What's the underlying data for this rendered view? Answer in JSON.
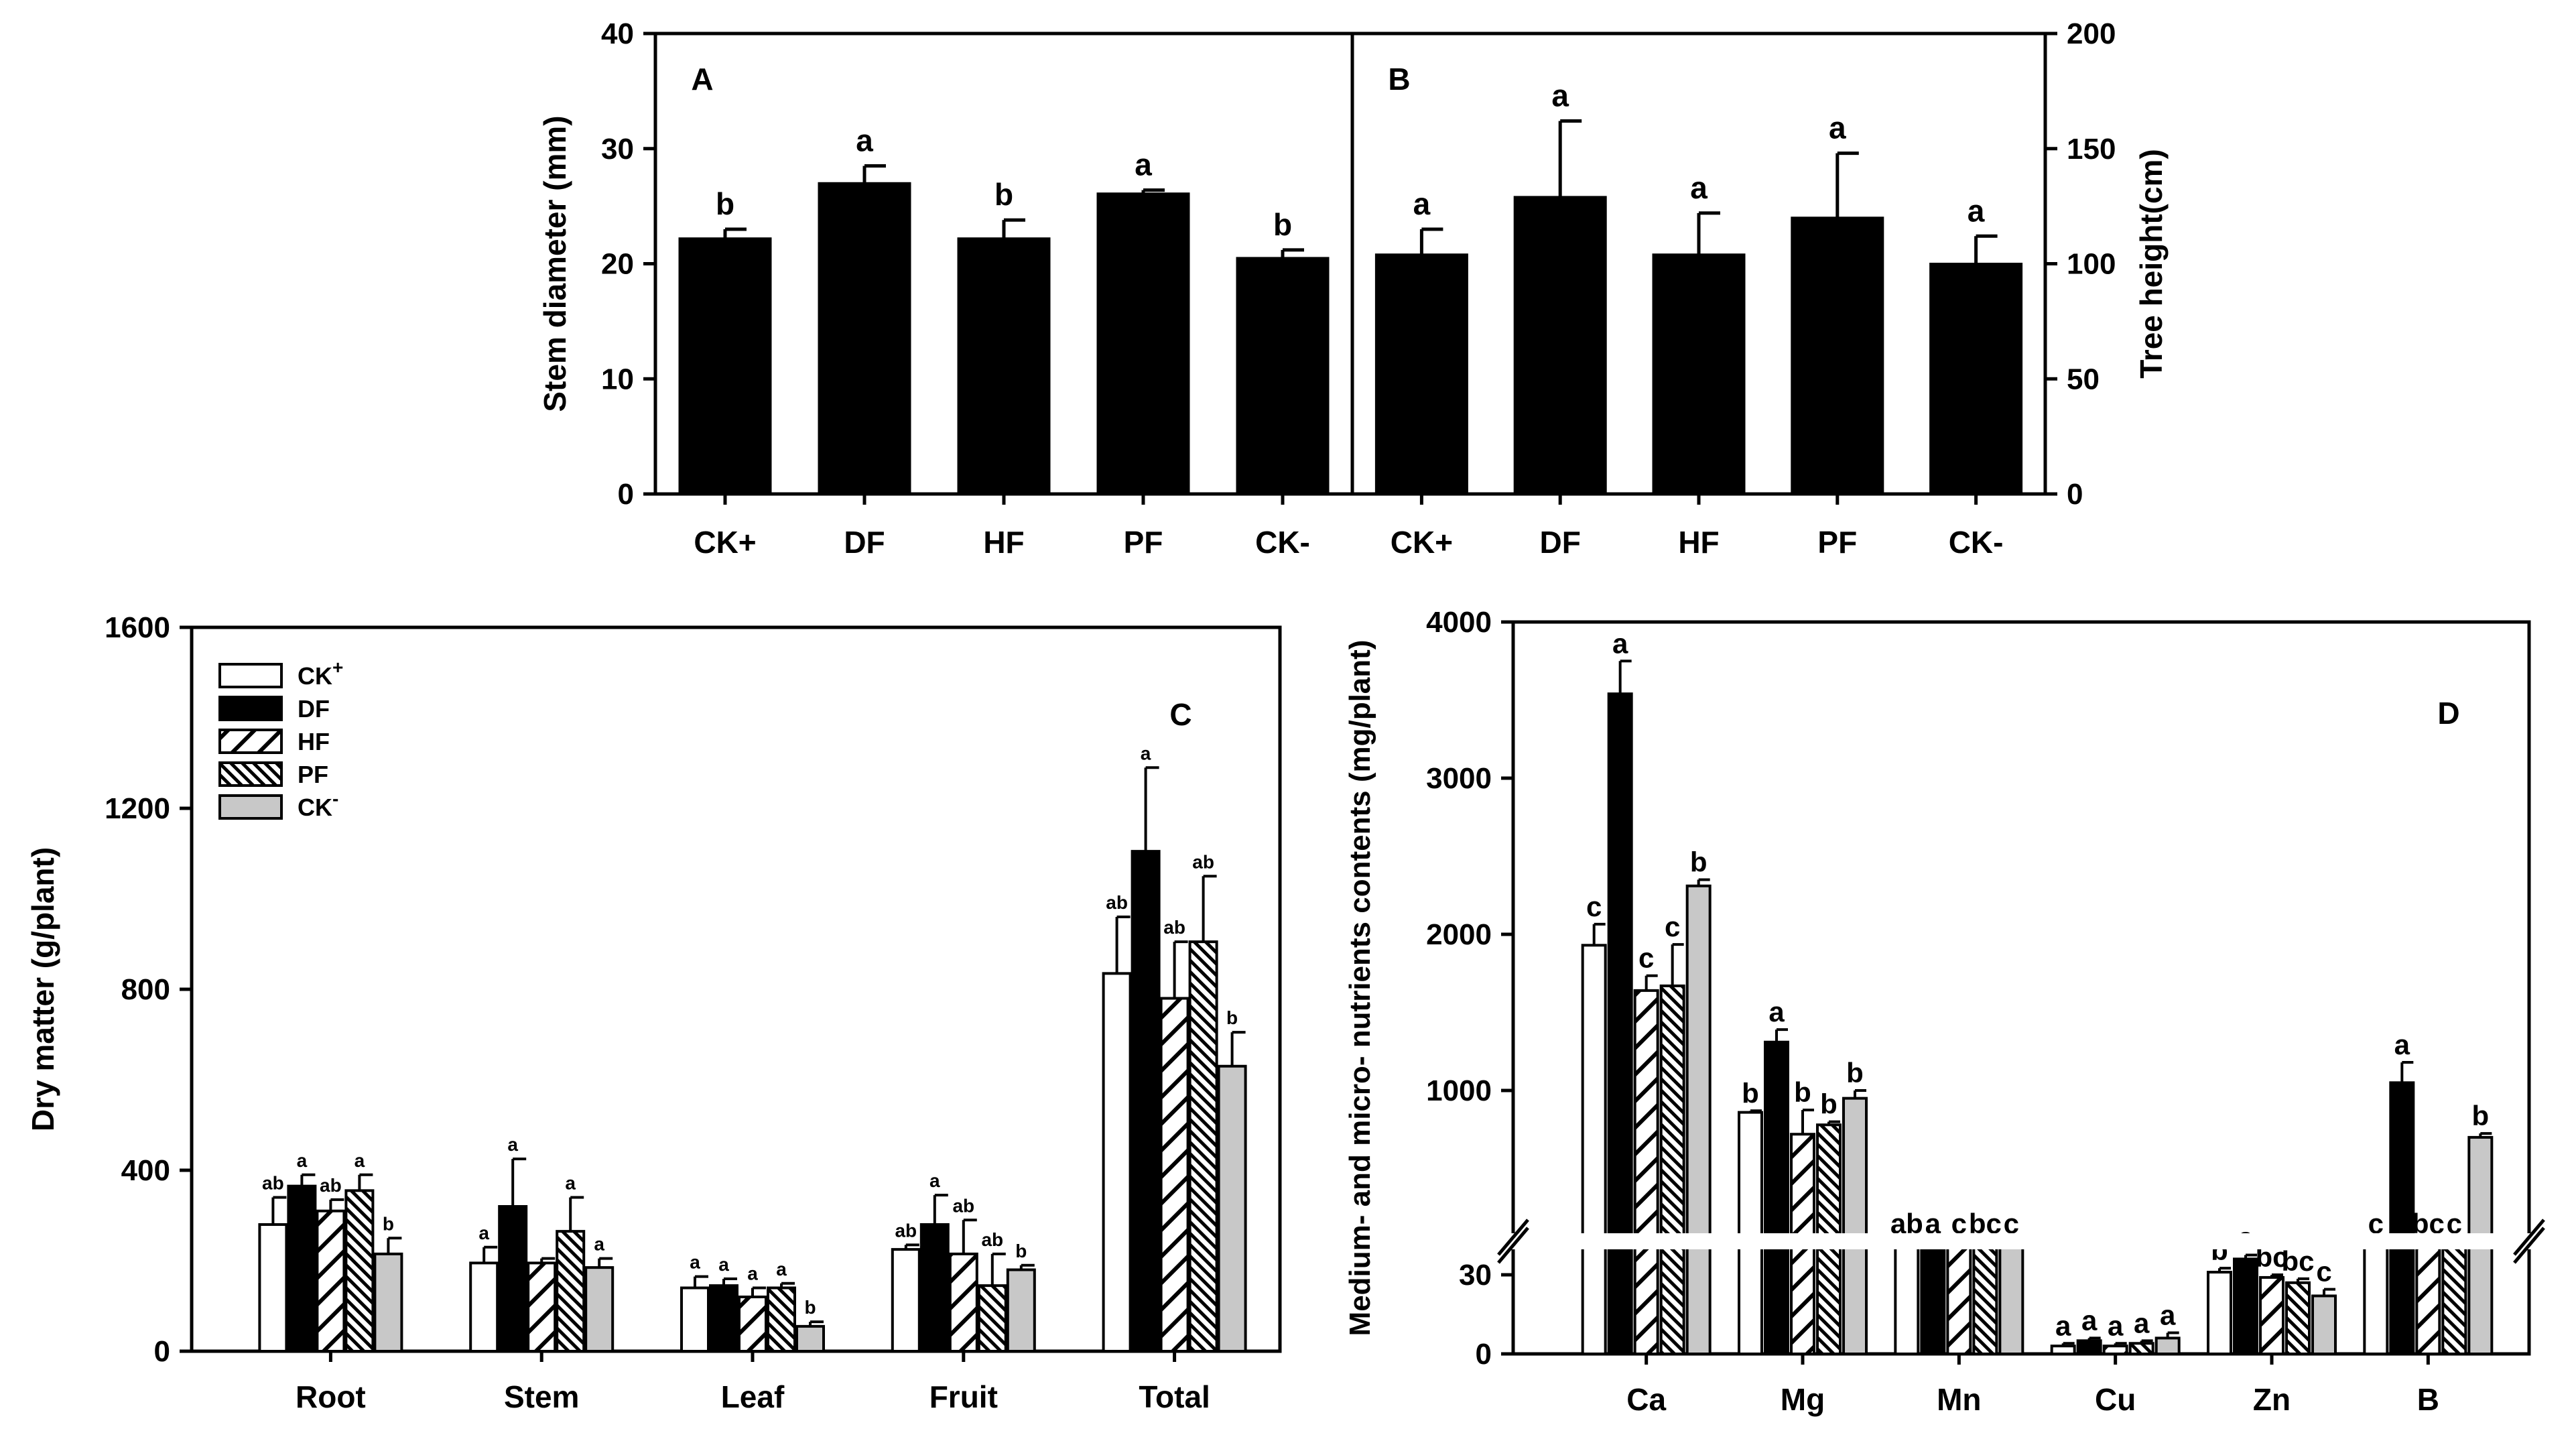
{
  "groups": [
    "CK+",
    "DF",
    "HF",
    "PF",
    "CK-"
  ],
  "legend": [
    {
      "main": "CK",
      "sup": "+"
    },
    {
      "main": "DF",
      "sup": ""
    },
    {
      "main": "HF",
      "sup": ""
    },
    {
      "main": "PF",
      "sup": ""
    },
    {
      "main": "CK",
      "sup": "-"
    }
  ],
  "chart_data": [
    {
      "id": "A",
      "type": "bar",
      "panel_label": "A",
      "ylabel": "Stem diameter (mm)",
      "yticks": [
        "0",
        "10",
        "20",
        "30",
        "40"
      ],
      "ylim": [
        0,
        40
      ],
      "categories": [
        "CK+",
        "DF",
        "HF",
        "PF",
        "CK-"
      ],
      "values": [
        22.2,
        27.0,
        22.2,
        26.1,
        20.5
      ],
      "errors": [
        0.8,
        1.5,
        1.6,
        0.3,
        0.7
      ],
      "letters": [
        "b",
        "a",
        "b",
        "a",
        "b"
      ]
    },
    {
      "id": "B",
      "type": "bar",
      "panel_label": "B",
      "ylabel": "Tree height(cm)",
      "yticks": [
        "0",
        "50",
        "100",
        "150",
        "200"
      ],
      "ylim": [
        0,
        200
      ],
      "categories": [
        "CK+",
        "DF",
        "HF",
        "PF",
        "CK-"
      ],
      "values": [
        104,
        129,
        104,
        120,
        100
      ],
      "errors": [
        11,
        33,
        18,
        28,
        12
      ],
      "letters": [
        "a",
        "a",
        "a",
        "a",
        "a"
      ]
    },
    {
      "id": "C",
      "type": "bar",
      "panel_label": "C",
      "ylabel": "Dry matter (g/plant)",
      "yticks": [
        "0",
        "400",
        "800",
        "1200",
        "1600"
      ],
      "ylim": [
        0,
        1600
      ],
      "categories": [
        "Root",
        "Stem",
        "Leaf",
        "Fruit",
        "Total"
      ],
      "series": [
        {
          "name": "CK+",
          "values": [
            280,
            195,
            140,
            225,
            835
          ],
          "errors": [
            60,
            35,
            25,
            10,
            125
          ],
          "letters": [
            "ab",
            "a",
            "a",
            "ab",
            "ab"
          ]
        },
        {
          "name": "DF",
          "values": [
            365,
            320,
            145,
            280,
            1105
          ],
          "errors": [
            25,
            105,
            15,
            65,
            185
          ],
          "letters": [
            "a",
            "a",
            "a",
            "a",
            "a"
          ]
        },
        {
          "name": "HF",
          "values": [
            310,
            195,
            120,
            215,
            780
          ],
          "errors": [
            25,
            10,
            20,
            75,
            125
          ],
          "letters": [
            "ab",
            "",
            "a",
            "ab",
            "ab"
          ]
        },
        {
          "name": "PF",
          "values": [
            355,
            265,
            140,
            145,
            905
          ],
          "errors": [
            35,
            75,
            10,
            70,
            145
          ],
          "letters": [
            "a",
            "a",
            "a",
            "ab",
            "ab"
          ]
        },
        {
          "name": "CK-",
          "values": [
            215,
            185,
            55,
            180,
            630
          ],
          "errors": [
            35,
            20,
            10,
            10,
            75
          ],
          "letters": [
            "b",
            "a",
            "b",
            "b",
            "b"
          ]
        }
      ]
    },
    {
      "id": "D",
      "type": "bar",
      "panel_label": "D",
      "ylabel": "Medium- and micro- nutrients contents (mg/plant)",
      "yticks": [
        "0",
        "30",
        "1000",
        "2000",
        "3000",
        "4000"
      ],
      "ylim": [
        0,
        4000
      ],
      "axis_break": [
        40,
        600
      ],
      "categories": [
        "Ca",
        "Mg",
        "Mn",
        "Cu",
        "Zn",
        "B"
      ],
      "series": [
        {
          "name": "CK+",
          "values": [
            1930,
            860,
            375,
            3,
            31,
            510
          ],
          "errors": [
            135,
            10,
            15,
            1,
            1.5,
            45
          ],
          "letters": [
            "c",
            "b",
            "ab",
            "a",
            "b",
            "c"
          ]
        },
        {
          "name": "DF",
          "values": [
            3540,
            1310,
            400,
            5,
            36,
            1050
          ],
          "errors": [
            210,
            80,
            80,
            1,
            1.5,
            130
          ],
          "letters": [
            "a",
            "a",
            "a",
            "a",
            "a",
            "a"
          ]
        },
        {
          "name": "HF",
          "values": [
            1640,
            720,
            300,
            3,
            29,
            580
          ],
          "errors": [
            95,
            155,
            10,
            1,
            1,
            15
          ],
          "letters": [
            "c",
            "b",
            "c",
            "a",
            "bc",
            "bc"
          ]
        },
        {
          "name": "PF",
          "values": [
            1670,
            780,
            290,
            4,
            27,
            540
          ],
          "errors": [
            265,
            20,
            25,
            1,
            1.5,
            15
          ],
          "letters": [
            "c",
            "b",
            "bc",
            "a",
            "bc",
            "c"
          ]
        },
        {
          "name": "CK-",
          "values": [
            2310,
            950,
            210,
            6,
            22,
            700
          ],
          "errors": [
            40,
            50,
            60,
            2,
            2.5,
            25
          ],
          "letters": [
            "b",
            "b",
            "c",
            "a",
            "c",
            "b"
          ]
        }
      ]
    }
  ]
}
